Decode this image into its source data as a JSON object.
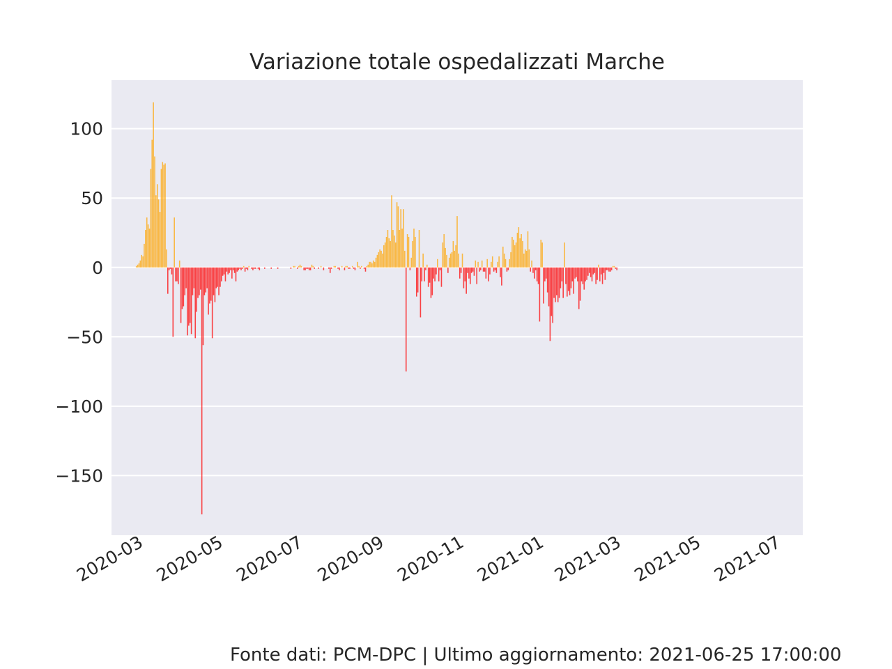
{
  "chart_data": {
    "type": "bar",
    "title": "Variazione totale ospedalizzati Marche",
    "xlabel": "",
    "ylabel": "",
    "x_range": [
      "2020-02-05",
      "2021-07-17"
    ],
    "ylim": [
      -193,
      135
    ],
    "yticks": [
      100,
      50,
      0,
      -50,
      -100,
      -150
    ],
    "ytick_labels": [
      "100",
      "50",
      "0",
      "−50",
      "−100",
      "−150"
    ],
    "xtick_labels": [
      "2020-03",
      "2020-05",
      "2020-07",
      "2020-09",
      "2020-11",
      "2021-01",
      "2021-03",
      "2021-05",
      "2021-07"
    ],
    "grid": true,
    "legend": "none",
    "colors": {
      "positive": "#ffa500",
      "negative": "#ff0000",
      "background": "#eaeaf2",
      "grid": "#ffffff",
      "text": "#262626"
    },
    "series": [
      {
        "start_date": "2020-02-24",
        "frequency": "daily",
        "values": [
          1,
          2,
          3,
          5,
          9,
          8,
          17,
          27,
          36,
          31,
          28,
          71,
          92,
          119,
          80,
          52,
          60,
          49,
          40,
          71,
          76,
          74,
          75,
          13,
          -19,
          -2,
          -1,
          -5,
          -50,
          36,
          -10,
          -10,
          -12,
          5,
          -40,
          -30,
          -28,
          -20,
          -15,
          -49,
          -42,
          -40,
          -48,
          -20,
          -15,
          -51,
          -32,
          -22,
          -20,
          -16,
          -178,
          -56,
          -20,
          -18,
          -15,
          -34,
          -26,
          -24,
          -51,
          -20,
          -25,
          -15,
          -14,
          -20,
          -14,
          -10,
          -6,
          -5,
          -10,
          -3,
          -5,
          -4,
          -2,
          -8,
          -2,
          -4,
          -10,
          -3,
          -2,
          -1,
          -2,
          -1,
          1,
          -3,
          -1,
          -2,
          1,
          0,
          -1,
          -2,
          -1,
          -1,
          0,
          -1,
          -2,
          0,
          0,
          0,
          -1,
          0,
          0,
          0,
          0,
          -1,
          0,
          0,
          0,
          0,
          -1,
          0,
          0,
          0,
          0,
          0,
          0,
          0,
          0,
          0,
          -1,
          0,
          1,
          1,
          0,
          -1,
          1,
          2,
          1,
          0,
          -2,
          -2,
          -1,
          -1,
          -2,
          -2,
          2,
          1,
          -1,
          0,
          0,
          -1,
          0,
          1,
          0,
          -2,
          0,
          0,
          0,
          -1,
          -4,
          -1,
          0,
          1,
          1,
          0,
          -1,
          -2,
          0,
          1,
          0,
          -2,
          1,
          1,
          -1,
          -1,
          0,
          1,
          -1,
          -2,
          0,
          4,
          1,
          -1,
          1,
          0,
          -1,
          -3,
          1,
          2,
          4,
          4,
          3,
          5,
          4,
          7,
          9,
          11,
          13,
          12,
          10,
          16,
          18,
          22,
          27,
          21,
          19,
          52,
          27,
          23,
          18,
          47,
          44,
          27,
          42,
          28,
          42,
          12,
          -75,
          24,
          22,
          -2,
          7,
          19,
          28,
          22,
          -21,
          -18,
          27,
          -36,
          -10,
          10,
          -10,
          -2,
          2,
          -14,
          -11,
          -22,
          -20,
          -8,
          -10,
          -5,
          6,
          -10,
          -2,
          -14,
          18,
          24,
          14,
          9,
          -4,
          7,
          10,
          11,
          19,
          12,
          16,
          37,
          10,
          -8,
          -4,
          10,
          -15,
          -10,
          -19,
          -4,
          -8,
          -12,
          -4,
          -3,
          -6,
          5,
          -12,
          4,
          -3,
          -2,
          5,
          -3,
          -3,
          -8,
          6,
          -10,
          -5,
          4,
          8,
          -3,
          -2,
          -4,
          4,
          8,
          -7,
          -13,
          15,
          10,
          6,
          -3,
          -2,
          6,
          11,
          22,
          20,
          16,
          18,
          25,
          29,
          21,
          24,
          19,
          10,
          13,
          12,
          26,
          13,
          -3,
          5,
          -4,
          -8,
          -2,
          -10,
          -12,
          -39,
          20,
          18,
          -26,
          -10,
          -8,
          -18,
          -28,
          -53,
          -35,
          -40,
          -22,
          -25,
          -20,
          -25,
          -22,
          -15,
          -10,
          -22,
          18,
          -12,
          -21,
          -17,
          -20,
          -15,
          -10,
          -19,
          -8,
          -7,
          -10,
          -30,
          -24,
          -10,
          -12,
          -16,
          -10,
          -9,
          -6,
          -4,
          -7,
          -10,
          -5,
          -4,
          -12,
          -9,
          2,
          -10,
          -5,
          -12,
          -4,
          -9,
          -2,
          -2,
          -3,
          -3,
          -2,
          1,
          1,
          -1,
          -2
        ]
      }
    ]
  },
  "footer": "Fonte dati: PCM-DPC | Ultimo aggiornamento: 2021-06-25 17:00:00"
}
